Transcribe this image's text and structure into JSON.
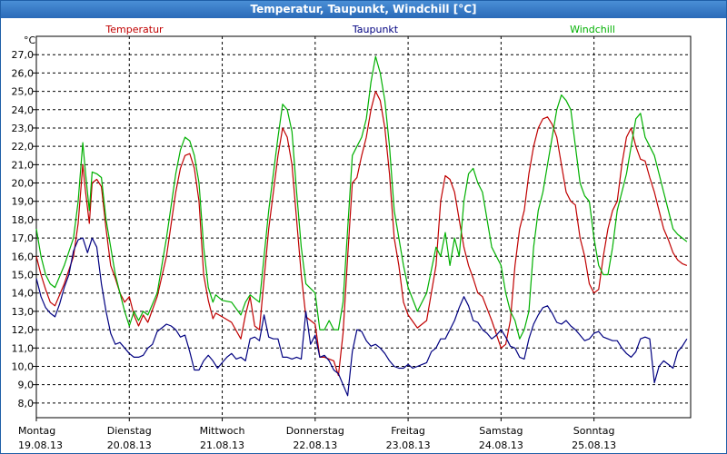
{
  "window": {
    "title": "Temperatur, Taupunkt, Windchill [°C]"
  },
  "chart_data": {
    "type": "line",
    "title": "Temperatur, Taupunkt, Windchill [°C]",
    "ylabel": "°C",
    "ylim": [
      7.2,
      28.0
    ],
    "yticks": [
      8.0,
      9.0,
      10.0,
      11.0,
      12.0,
      13.0,
      14.0,
      15.0,
      16.0,
      17.0,
      18.0,
      19.0,
      20.0,
      21.0,
      22.0,
      23.0,
      24.0,
      25.0,
      26.0,
      27.0
    ],
    "ytick_labels": [
      "8,0",
      "9,0",
      "10,0",
      "11,0",
      "12,0",
      "13,0",
      "14,0",
      "15,0",
      "16,0",
      "17,0",
      "18,0",
      "19,0",
      "20,0",
      "21,0",
      "22,0",
      "23,0",
      "24,0",
      "25,0",
      "26,0",
      "27,0"
    ],
    "xlim": [
      0,
      7.04
    ],
    "xticks": [
      {
        "day": "Montag",
        "date": "19.08.13"
      },
      {
        "day": "Dienstag",
        "date": "20.08.13"
      },
      {
        "day": "Mittwoch",
        "date": "21.08.13"
      },
      {
        "day": "Donnerstag",
        "date": "22.08.13"
      },
      {
        "day": "Freitag",
        "date": "23.08.13"
      },
      {
        "day": "Samstag",
        "date": "24.08.13"
      },
      {
        "day": "Sonntag",
        "date": "25.08.13"
      }
    ],
    "grid": true,
    "series": [
      {
        "name": "Temperatur",
        "color": "#c00000",
        "x": [
          0,
          0.05,
          0.1,
          0.15,
          0.2,
          0.3,
          0.4,
          0.45,
          0.5,
          0.53,
          0.57,
          0.6,
          0.65,
          0.7,
          0.75,
          0.8,
          0.85,
          0.9,
          0.95,
          1.0,
          1.05,
          1.1,
          1.15,
          1.2,
          1.3,
          1.4,
          1.5,
          1.55,
          1.6,
          1.65,
          1.7,
          1.75,
          1.8,
          1.85,
          1.9,
          1.93,
          2.0,
          2.1,
          2.2,
          2.25,
          2.3,
          2.35,
          2.4,
          2.5,
          2.6,
          2.65,
          2.7,
          2.75,
          2.8,
          2.85,
          2.9,
          3.0,
          3.05,
          3.1,
          3.15,
          3.2,
          3.25,
          3.3,
          3.35,
          3.4,
          3.45,
          3.5,
          3.55,
          3.6,
          3.65,
          3.7,
          3.75,
          3.8,
          3.85,
          3.9,
          3.95,
          4.0,
          4.1,
          4.2,
          4.3,
          4.35,
          4.4,
          4.45,
          4.5,
          4.55,
          4.6,
          4.65,
          4.7,
          4.75,
          4.8,
          4.9,
          5.0,
          5.05,
          5.1,
          5.15,
          5.2,
          5.25,
          5.3,
          5.35,
          5.4,
          5.45,
          5.5,
          5.55,
          5.6,
          5.65,
          5.7,
          5.75,
          5.8,
          5.85,
          5.9,
          5.95,
          6.0,
          6.05,
          6.1,
          6.15,
          6.2,
          6.25,
          6.3,
          6.35,
          6.4,
          6.45,
          6.5,
          6.55,
          6.6,
          6.65,
          6.7,
          6.75,
          6.8,
          6.85,
          6.9,
          6.95,
          7.0
        ],
        "values": [
          16.0,
          15.0,
          14.2,
          13.5,
          13.3,
          14.5,
          16.0,
          17.8,
          21.0,
          19.5,
          17.8,
          20.0,
          20.2,
          19.8,
          17.5,
          15.5,
          14.8,
          14.0,
          13.5,
          13.8,
          12.8,
          12.2,
          12.8,
          12.4,
          13.8,
          16.0,
          19.5,
          20.8,
          21.5,
          21.6,
          20.8,
          19.0,
          15.0,
          13.6,
          12.6,
          12.9,
          12.7,
          12.4,
          11.5,
          12.8,
          13.8,
          12.2,
          12.0,
          17.5,
          21.5,
          23.0,
          22.5,
          21.0,
          18.0,
          15.0,
          12.7,
          12.3,
          10.5,
          10.5,
          10.4,
          10.3,
          9.5,
          11.8,
          16.0,
          20.0,
          20.3,
          21.5,
          22.5,
          24.0,
          25.0,
          24.5,
          23.0,
          20.5,
          17.0,
          15.5,
          13.5,
          12.8,
          12.1,
          12.5,
          15.5,
          19.0,
          20.4,
          20.2,
          19.5,
          18.0,
          16.5,
          15.5,
          14.8,
          14.0,
          13.8,
          12.5,
          11.0,
          11.2,
          12.5,
          15.5,
          17.5,
          18.5,
          20.5,
          22.0,
          23.0,
          23.5,
          23.6,
          23.2,
          22.5,
          21.0,
          19.5,
          19.0,
          18.8,
          17.0,
          16.0,
          14.5,
          14.0,
          14.2,
          16.0,
          17.5,
          18.5,
          19.0,
          21.0,
          22.5,
          23.0,
          22.0,
          21.3,
          21.2,
          20.3,
          19.5,
          18.5,
          17.5,
          16.9,
          16.2,
          15.8,
          15.6,
          15.5
        ]
      },
      {
        "name": "Taupunkt",
        "color": "#000080",
        "x": [
          0,
          0.05,
          0.1,
          0.15,
          0.2,
          0.25,
          0.3,
          0.35,
          0.4,
          0.45,
          0.5,
          0.55,
          0.6,
          0.65,
          0.7,
          0.75,
          0.8,
          0.85,
          0.9,
          0.95,
          1.0,
          1.05,
          1.1,
          1.15,
          1.2,
          1.25,
          1.3,
          1.35,
          1.4,
          1.45,
          1.5,
          1.55,
          1.6,
          1.65,
          1.7,
          1.75,
          1.8,
          1.85,
          1.9,
          1.95,
          2.0,
          2.05,
          2.1,
          2.15,
          2.2,
          2.25,
          2.3,
          2.35,
          2.4,
          2.45,
          2.5,
          2.55,
          2.6,
          2.65,
          2.7,
          2.75,
          2.8,
          2.85,
          2.9,
          2.95,
          3.0,
          3.05,
          3.1,
          3.15,
          3.2,
          3.25,
          3.3,
          3.35,
          3.4,
          3.45,
          3.5,
          3.55,
          3.6,
          3.65,
          3.7,
          3.75,
          3.8,
          3.85,
          3.9,
          3.95,
          4.0,
          4.05,
          4.1,
          4.15,
          4.2,
          4.25,
          4.3,
          4.35,
          4.4,
          4.45,
          4.5,
          4.55,
          4.6,
          4.65,
          4.7,
          4.75,
          4.8,
          4.85,
          4.9,
          4.95,
          5.0,
          5.05,
          5.1,
          5.15,
          5.2,
          5.25,
          5.3,
          5.35,
          5.4,
          5.45,
          5.5,
          5.55,
          5.6,
          5.65,
          5.7,
          5.75,
          5.8,
          5.85,
          5.9,
          5.95,
          6.0,
          6.05,
          6.1,
          6.15,
          6.2,
          6.25,
          6.3,
          6.35,
          6.4,
          6.45,
          6.5,
          6.55,
          6.6,
          6.65,
          6.7,
          6.75,
          6.8,
          6.85,
          6.9,
          6.95,
          7.0
        ],
        "values": [
          14.8,
          13.8,
          13.2,
          12.9,
          12.7,
          13.4,
          14.3,
          15.0,
          16.3,
          16.9,
          17.0,
          16.2,
          17.0,
          16.5,
          14.5,
          13.0,
          11.8,
          11.2,
          11.3,
          11.0,
          10.7,
          10.5,
          10.5,
          10.6,
          11.0,
          11.2,
          11.9,
          12.1,
          12.3,
          12.2,
          12.0,
          11.6,
          11.7,
          10.8,
          9.8,
          9.8,
          10.3,
          10.6,
          10.3,
          9.9,
          10.2,
          10.5,
          10.7,
          10.4,
          10.5,
          10.3,
          11.5,
          11.6,
          11.4,
          12.8,
          11.6,
          11.5,
          11.5,
          10.5,
          10.5,
          10.4,
          10.5,
          10.4,
          13.0,
          11.2,
          11.7,
          10.5,
          10.6,
          10.3,
          9.8,
          9.6,
          9.0,
          8.4,
          10.8,
          12.0,
          11.9,
          11.4,
          11.1,
          11.2,
          11.0,
          10.7,
          10.3,
          10.0,
          9.9,
          9.9,
          10.1,
          9.9,
          10.0,
          10.1,
          10.2,
          10.8,
          11.0,
          11.5,
          11.5,
          12.0,
          12.5,
          13.2,
          13.8,
          13.3,
          12.5,
          12.4,
          12.0,
          11.8,
          11.5,
          11.7,
          12.0,
          11.6,
          11.1,
          11.0,
          10.5,
          10.4,
          11.5,
          12.3,
          12.8,
          13.2,
          13.3,
          12.9,
          12.4,
          12.3,
          12.5,
          12.2,
          12.0,
          11.7,
          11.4,
          11.5,
          11.8,
          11.9,
          11.6,
          11.5,
          11.4,
          11.4,
          11.0,
          10.7,
          10.5,
          10.8,
          11.5,
          11.6,
          11.5,
          9.1,
          10.0,
          10.3,
          10.1,
          9.9,
          10.8,
          11.1,
          11.5
        ]
      },
      {
        "name": "Windchill",
        "color": "#00b000",
        "x": [
          0,
          0.05,
          0.1,
          0.15,
          0.2,
          0.3,
          0.4,
          0.45,
          0.5,
          0.53,
          0.57,
          0.6,
          0.65,
          0.7,
          0.75,
          0.8,
          0.85,
          0.9,
          0.95,
          1.0,
          1.05,
          1.1,
          1.15,
          1.2,
          1.3,
          1.4,
          1.5,
          1.55,
          1.6,
          1.65,
          1.7,
          1.75,
          1.8,
          1.85,
          1.9,
          1.93,
          2.0,
          2.1,
          2.2,
          2.25,
          2.3,
          2.35,
          2.4,
          2.5,
          2.6,
          2.65,
          2.7,
          2.75,
          2.8,
          2.85,
          2.9,
          3.0,
          3.05,
          3.1,
          3.15,
          3.2,
          3.25,
          3.3,
          3.35,
          3.4,
          3.45,
          3.5,
          3.55,
          3.6,
          3.65,
          3.7,
          3.75,
          3.8,
          3.85,
          3.9,
          3.95,
          4.0,
          4.1,
          4.2,
          4.3,
          4.35,
          4.4,
          4.45,
          4.5,
          4.55,
          4.6,
          4.65,
          4.7,
          4.75,
          4.8,
          4.9,
          5.0,
          5.05,
          5.1,
          5.15,
          5.2,
          5.25,
          5.3,
          5.35,
          5.4,
          5.45,
          5.5,
          5.55,
          5.6,
          5.65,
          5.7,
          5.75,
          5.8,
          5.85,
          5.9,
          5.95,
          6.0,
          6.05,
          6.1,
          6.15,
          6.2,
          6.25,
          6.3,
          6.35,
          6.4,
          6.45,
          6.5,
          6.55,
          6.6,
          6.65,
          6.7,
          6.75,
          6.8,
          6.85,
          6.9,
          6.95,
          7.0
        ],
        "values": [
          17.5,
          16.0,
          15.0,
          14.5,
          14.3,
          15.5,
          17.0,
          19.0,
          22.2,
          20.5,
          18.5,
          20.6,
          20.5,
          20.3,
          18.0,
          16.5,
          15.0,
          14.0,
          13.0,
          12.2,
          13.0,
          12.5,
          13.0,
          12.8,
          14.0,
          17.0,
          20.5,
          21.8,
          22.5,
          22.3,
          21.5,
          20.0,
          16.5,
          14.3,
          13.5,
          13.9,
          13.6,
          13.5,
          12.8,
          13.5,
          13.9,
          13.7,
          13.5,
          18.5,
          22.5,
          24.3,
          24.0,
          22.8,
          19.5,
          16.5,
          14.5,
          14.0,
          12.0,
          12.0,
          12.5,
          12.0,
          12.0,
          13.5,
          17.5,
          21.5,
          22.0,
          22.5,
          23.5,
          25.5,
          26.9,
          26.0,
          24.5,
          22.0,
          18.5,
          17.0,
          15.5,
          14.3,
          13.0,
          14.0,
          16.5,
          16.0,
          17.3,
          15.5,
          17.0,
          16.0,
          19.0,
          20.5,
          20.8,
          20.0,
          19.5,
          16.5,
          15.5,
          14.0,
          13.0,
          12.5,
          11.5,
          12.0,
          13.0,
          16.5,
          18.5,
          19.5,
          21.0,
          22.5,
          24.0,
          24.8,
          24.5,
          24.0,
          22.0,
          20.0,
          19.3,
          19.0,
          17.0,
          15.5,
          15.0,
          15.0,
          16.5,
          18.5,
          19.5,
          20.5,
          22.0,
          23.5,
          23.8,
          22.5,
          22.0,
          21.5,
          20.5,
          19.5,
          18.5,
          17.5,
          17.2,
          17.0,
          16.8
        ]
      }
    ]
  }
}
